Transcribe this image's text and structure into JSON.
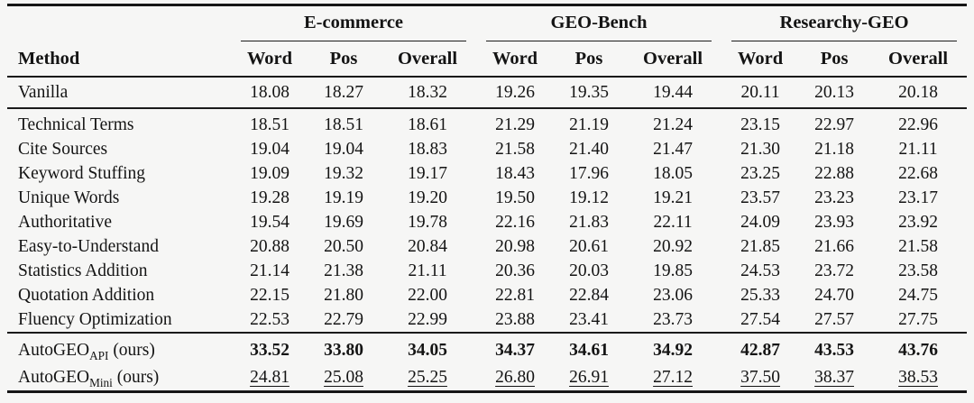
{
  "table": {
    "method_header": "Method",
    "groups": [
      {
        "label": "E-commerce"
      },
      {
        "label": "GEO-Bench"
      },
      {
        "label": "Researchy-GEO"
      }
    ],
    "subcolumns": [
      "Word",
      "Pos",
      "Overall"
    ],
    "sections": [
      {
        "name": "baseline",
        "rows": [
          {
            "method": "Vanilla",
            "method_sub": "",
            "method_suffix": "",
            "emphasis": "none",
            "values": [
              "18.08",
              "18.27",
              "18.32",
              "19.26",
              "19.35",
              "19.44",
              "20.11",
              "20.13",
              "20.18"
            ]
          }
        ]
      },
      {
        "name": "strategies",
        "rows": [
          {
            "method": "Technical Terms",
            "method_sub": "",
            "method_suffix": "",
            "emphasis": "none",
            "values": [
              "18.51",
              "18.51",
              "18.61",
              "21.29",
              "21.19",
              "21.24",
              "23.15",
              "22.97",
              "22.96"
            ]
          },
          {
            "method": "Cite Sources",
            "method_sub": "",
            "method_suffix": "",
            "emphasis": "none",
            "values": [
              "19.04",
              "19.04",
              "18.83",
              "21.58",
              "21.40",
              "21.47",
              "21.30",
              "21.18",
              "21.11"
            ]
          },
          {
            "method": "Keyword Stuffing",
            "method_sub": "",
            "method_suffix": "",
            "emphasis": "none",
            "values": [
              "19.09",
              "19.32",
              "19.17",
              "18.43",
              "17.96",
              "18.05",
              "23.25",
              "22.88",
              "22.68"
            ]
          },
          {
            "method": "Unique Words",
            "method_sub": "",
            "method_suffix": "",
            "emphasis": "none",
            "values": [
              "19.28",
              "19.19",
              "19.20",
              "19.50",
              "19.12",
              "19.21",
              "23.57",
              "23.23",
              "23.17"
            ]
          },
          {
            "method": "Authoritative",
            "method_sub": "",
            "method_suffix": "",
            "emphasis": "none",
            "values": [
              "19.54",
              "19.69",
              "19.78",
              "22.16",
              "21.83",
              "22.11",
              "24.09",
              "23.93",
              "23.92"
            ]
          },
          {
            "method": "Easy-to-Understand",
            "method_sub": "",
            "method_suffix": "",
            "emphasis": "none",
            "values": [
              "20.88",
              "20.50",
              "20.84",
              "20.98",
              "20.61",
              "20.92",
              "21.85",
              "21.66",
              "21.58"
            ]
          },
          {
            "method": "Statistics Addition",
            "method_sub": "",
            "method_suffix": "",
            "emphasis": "none",
            "values": [
              "21.14",
              "21.38",
              "21.11",
              "20.36",
              "20.03",
              "19.85",
              "24.53",
              "23.72",
              "23.58"
            ]
          },
          {
            "method": "Quotation Addition",
            "method_sub": "",
            "method_suffix": "",
            "emphasis": "none",
            "values": [
              "22.15",
              "21.80",
              "22.00",
              "22.81",
              "22.84",
              "23.06",
              "25.33",
              "24.70",
              "24.75"
            ]
          },
          {
            "method": "Fluency Optimization",
            "method_sub": "",
            "method_suffix": "",
            "emphasis": "none",
            "values": [
              "22.53",
              "22.79",
              "22.99",
              "23.88",
              "23.41",
              "23.73",
              "27.54",
              "27.57",
              "27.75"
            ]
          }
        ]
      },
      {
        "name": "ours",
        "rows": [
          {
            "method": "AutoGEO",
            "method_sub": "API",
            "method_suffix": " (ours)",
            "emphasis": "bold",
            "values": [
              "33.52",
              "33.80",
              "34.05",
              "34.37",
              "34.61",
              "34.92",
              "42.87",
              "43.53",
              "43.76"
            ]
          },
          {
            "method": "AutoGEO",
            "method_sub": "Mini",
            "method_suffix": " (ours)",
            "emphasis": "underline",
            "values": [
              "24.81",
              "25.08",
              "25.25",
              "26.80",
              "26.91",
              "27.12",
              "37.50",
              "38.37",
              "38.53"
            ]
          }
        ]
      }
    ]
  }
}
